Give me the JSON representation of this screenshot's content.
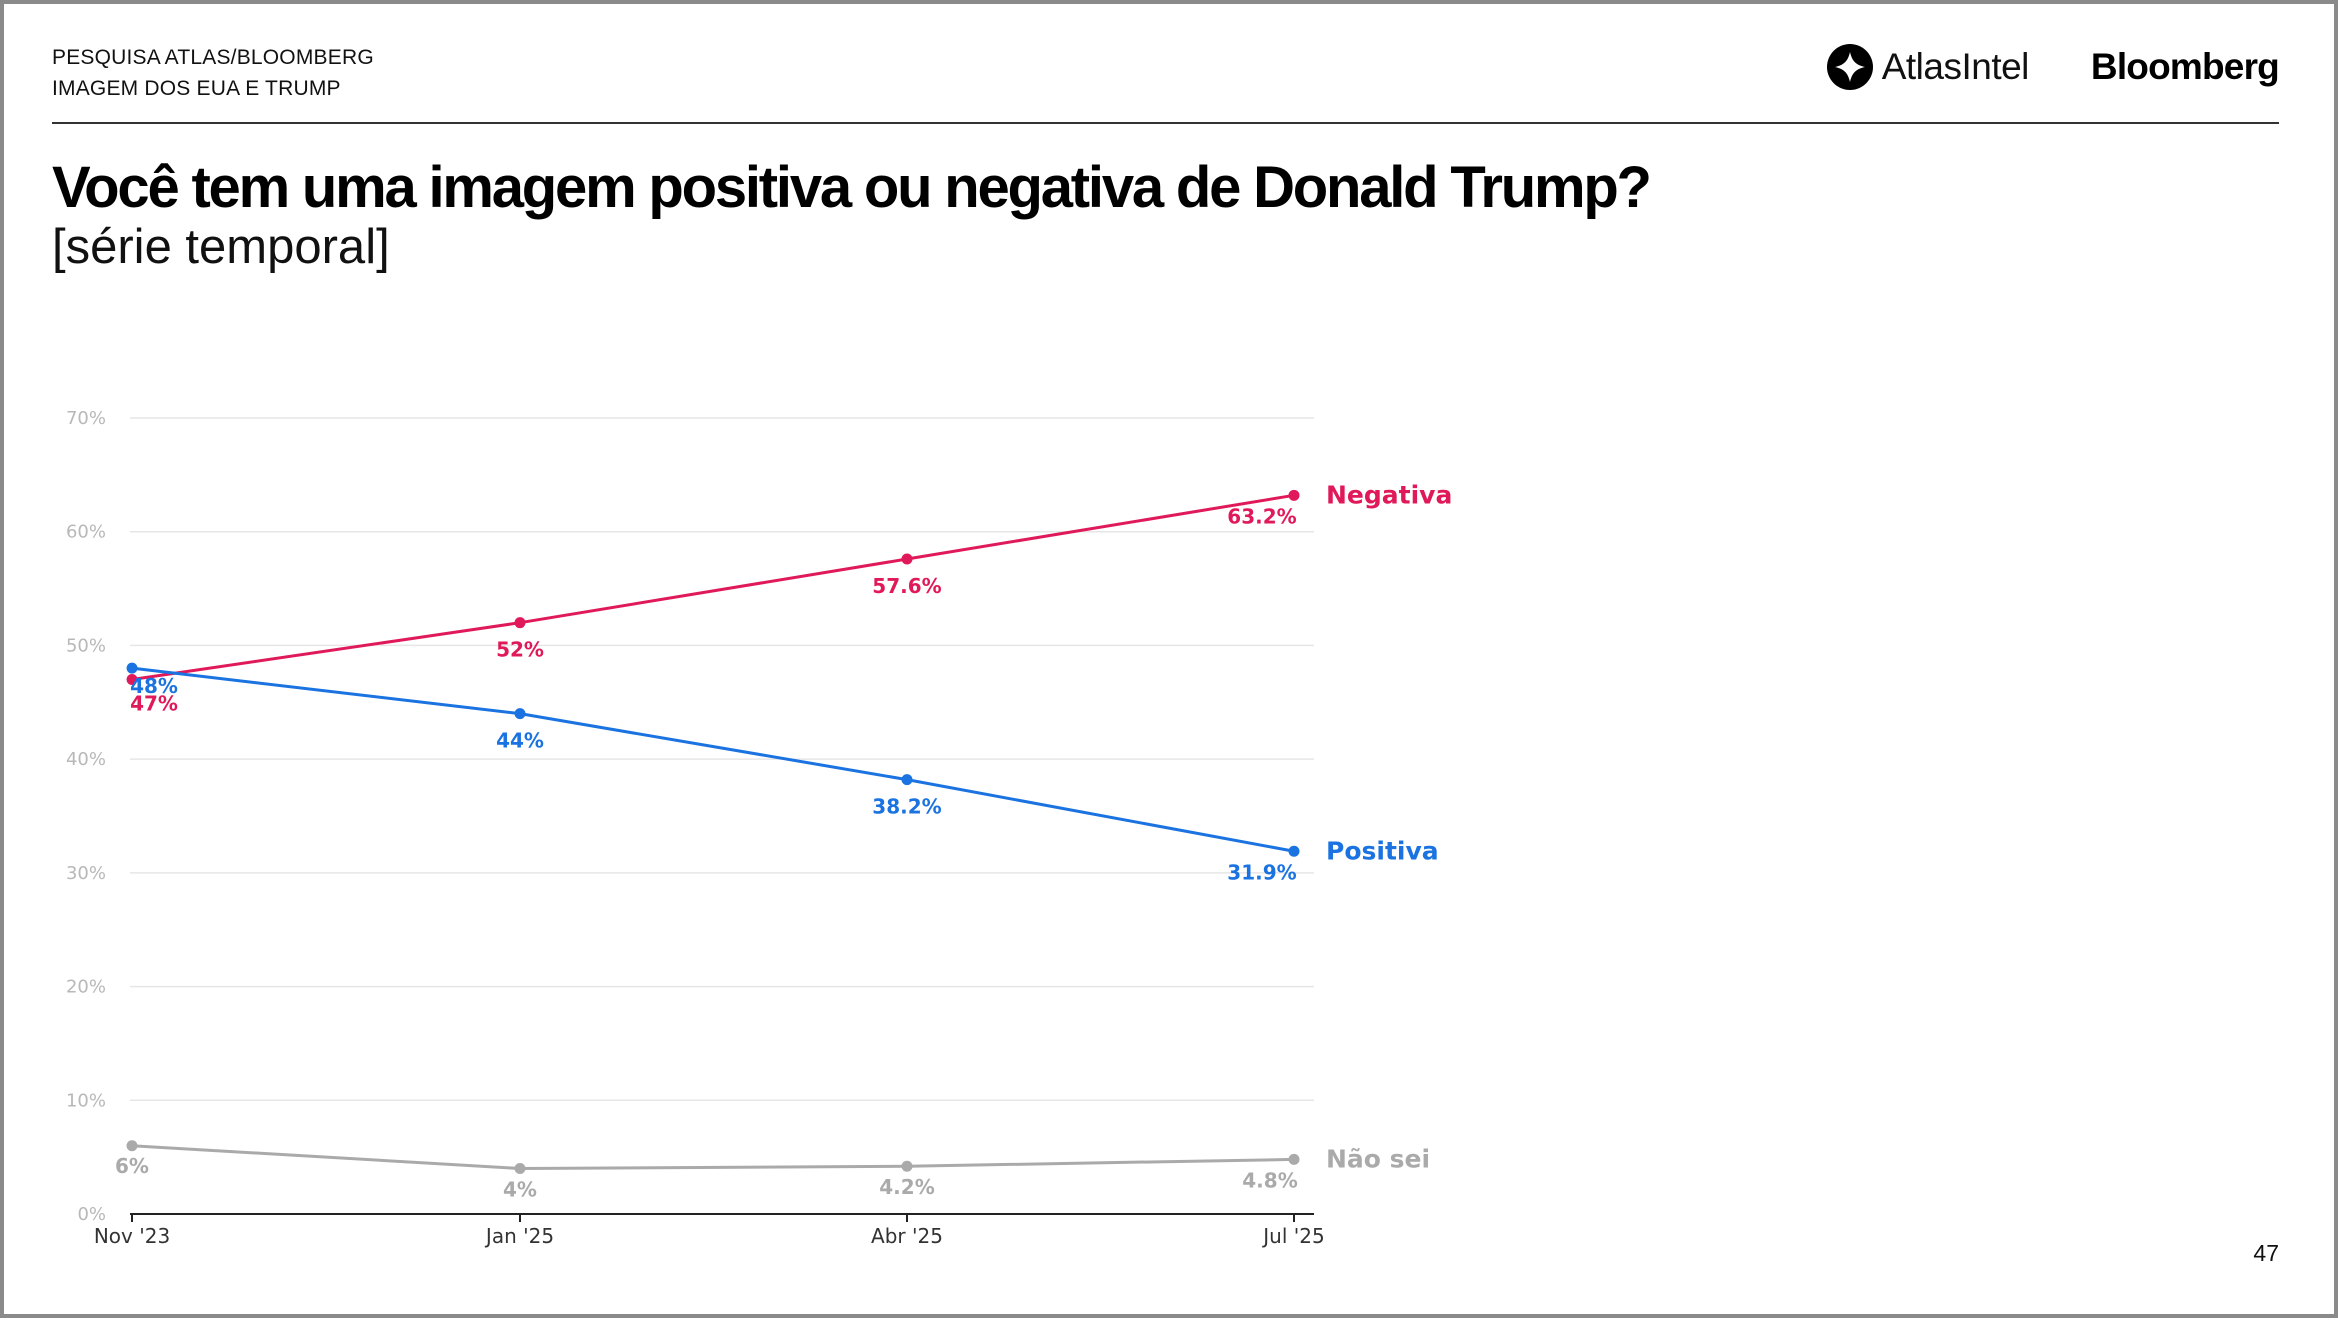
{
  "header": {
    "kicker_line1": "PESQUISA ATLAS/BLOOMBERG",
    "kicker_line2": "IMAGEM DOS EUA E TRUMP",
    "logo_atlas": "AtlasIntel",
    "logo_bloomberg": "Bloomberg"
  },
  "title": "Você tem uma imagem positiva ou negativa de Donald Trump?",
  "subtitle": "[série temporal]",
  "page_number": "47",
  "chart_data": {
    "type": "line",
    "categories": [
      "Nov '23",
      "Jan '25",
      "Abr '25",
      "Jul '25"
    ],
    "ylim": [
      0,
      70
    ],
    "yticks": [
      0,
      10,
      20,
      30,
      40,
      50,
      60,
      70
    ],
    "ytick_labels": [
      "0%",
      "10%",
      "20%",
      "30%",
      "40%",
      "50%",
      "60%",
      "70%"
    ],
    "grid": true,
    "legend": "inline labels at end of lines",
    "series": [
      {
        "name": "Negativa",
        "color": "#e0195a",
        "values": [
          47,
          52,
          57.6,
          63.2
        ],
        "labels": [
          "47%",
          "52%",
          "57.6%",
          "63.2%"
        ]
      },
      {
        "name": "Positiva",
        "color": "#1a73e0",
        "values": [
          48,
          44,
          38.2,
          31.9
        ],
        "labels": [
          "48%",
          "44%",
          "38.2%",
          "31.9%"
        ]
      },
      {
        "name": "Não sei",
        "color": "#aaaaaa",
        "values": [
          6,
          4,
          4.2,
          4.8
        ],
        "labels": [
          "6%",
          "4%",
          "4.2%",
          "4.8%"
        ]
      }
    ]
  }
}
